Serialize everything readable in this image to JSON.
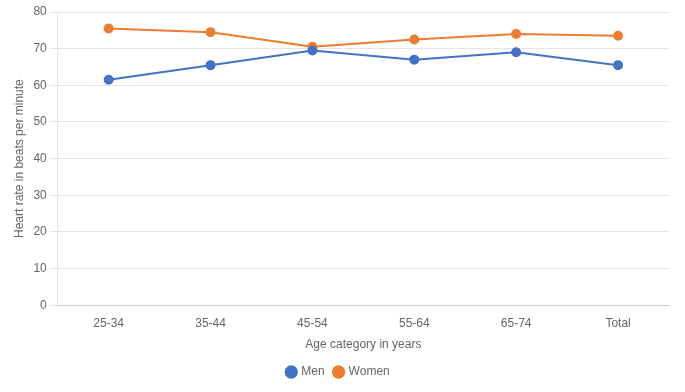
{
  "chart_data": {
    "type": "line",
    "xlabel": "Age category in years",
    "ylabel": "Heart rate in beats per minute",
    "categories": [
      "25-34",
      "35-44",
      "45-54",
      "55-64",
      "65-74",
      "Total"
    ],
    "series": [
      {
        "name": "Men",
        "color": "#4472C4",
        "values": [
          61.5,
          65.5,
          69.5,
          67.0,
          69.0,
          65.5
        ],
        "marker": "circle"
      },
      {
        "name": "Women",
        "color": "#ED7D31",
        "values": [
          75.5,
          74.5,
          70.5,
          72.5,
          74.0,
          73.5
        ],
        "marker": "circle"
      }
    ],
    "ylim": [
      0,
      80
    ],
    "yticks": [
      0,
      10,
      20,
      30,
      40,
      50,
      60,
      70,
      80
    ],
    "grid": "y",
    "legend": "bottom"
  }
}
